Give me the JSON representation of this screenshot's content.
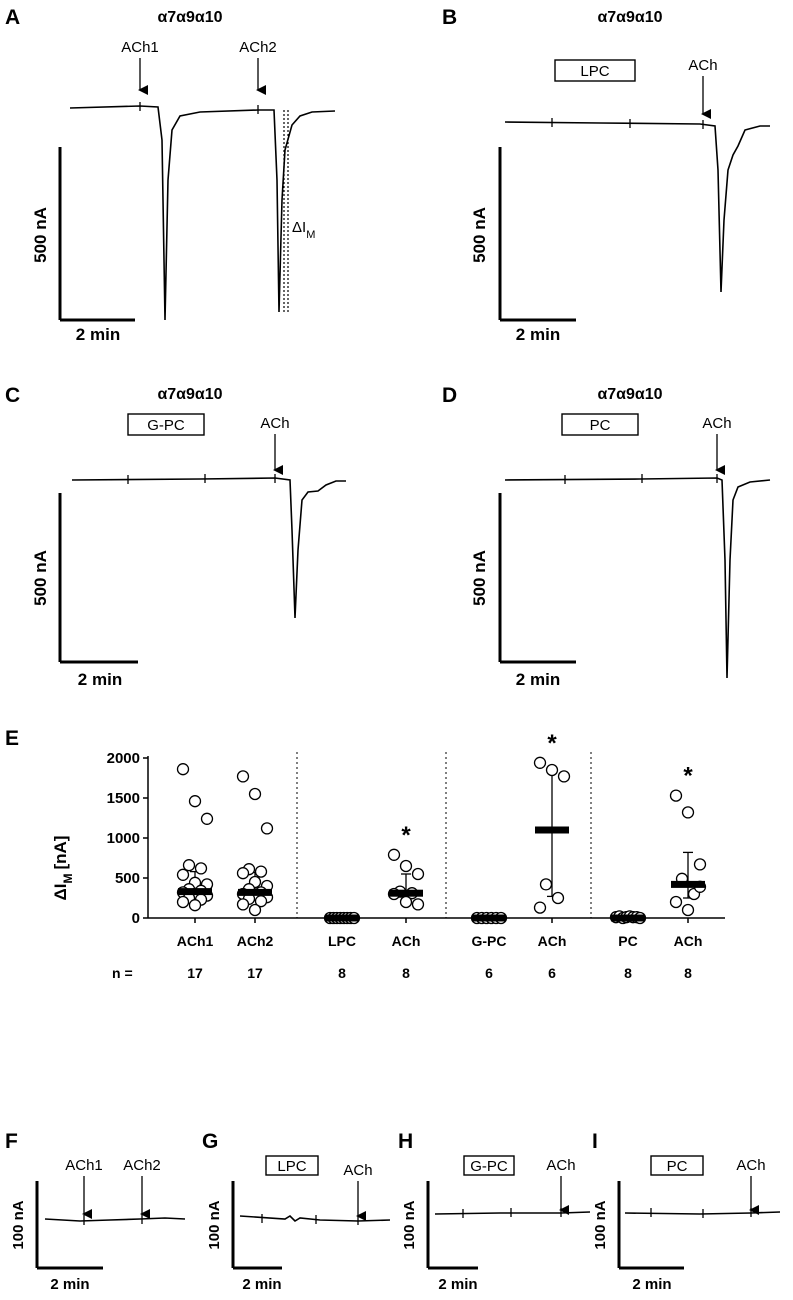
{
  "panels": {
    "A": {
      "label": "A",
      "title": "α7α9α10",
      "arrows": [
        "ACh1",
        "ACh2"
      ],
      "delta": "ΔI",
      "delta_sub": "M"
    },
    "B": {
      "label": "B",
      "title": "α7α9α10",
      "box": "LPC",
      "arrows": [
        "ACh"
      ]
    },
    "C": {
      "label": "C",
      "title": "α7α9α10",
      "box": "G-PC",
      "arrows": [
        "ACh"
      ]
    },
    "D": {
      "label": "D",
      "title": "α7α9α10",
      "box": "PC",
      "arrows": [
        "ACh"
      ]
    },
    "E": {
      "label": "E"
    },
    "F": {
      "label": "F",
      "arrows": [
        "ACh1",
        "ACh2"
      ]
    },
    "G": {
      "label": "G",
      "box": "LPC",
      "arrows": [
        "ACh"
      ]
    },
    "H": {
      "label": "H",
      "box": "G-PC",
      "arrows": [
        "ACh"
      ]
    },
    "I": {
      "label": "I",
      "box": "PC",
      "arrows": [
        "ACh"
      ]
    }
  },
  "scale_bars": {
    "current_large": "500 nA",
    "current_small": "100 nA",
    "time": "2 min"
  },
  "chart_data": {
    "type": "scatter",
    "ylabel": "ΔI",
    "ylabel_sub": "M",
    "ylabel_unit": "[nA]",
    "ylim": [
      0,
      2000
    ],
    "yticks": [
      "0",
      "500",
      "1000",
      "1500",
      "2000"
    ],
    "n_label": "n =",
    "categories": [
      "ACh1",
      "ACh2",
      "LPC",
      "ACh",
      "G-PC",
      "ACh",
      "PC",
      "ACh"
    ],
    "n": [
      "17",
      "17",
      "8",
      "8",
      "6",
      "6",
      "8",
      "8"
    ],
    "significance": [
      "",
      "",
      "",
      "*",
      "",
      "*",
      "",
      "*"
    ],
    "median": [
      330,
      320,
      0,
      310,
      0,
      1100,
      0,
      420
    ],
    "error_low": [
      230,
      230,
      0,
      240,
      0,
      270,
      0,
      250
    ],
    "error_high": [
      580,
      570,
      0,
      550,
      0,
      1820,
      0,
      820
    ],
    "points": [
      [
        1860,
        1460,
        1240,
        660,
        620,
        540,
        440,
        420,
        360,
        340,
        320,
        300,
        280,
        250,
        230,
        200,
        160
      ],
      [
        1770,
        1550,
        1120,
        610,
        580,
        560,
        450,
        400,
        360,
        320,
        300,
        290,
        260,
        240,
        210,
        170,
        100
      ],
      [
        0,
        0,
        0,
        0,
        0,
        0,
        0,
        0
      ],
      [
        790,
        650,
        550,
        330,
        310,
        300,
        200,
        170
      ],
      [
        0,
        0,
        0,
        0,
        0,
        0
      ],
      [
        1940,
        1850,
        1770,
        420,
        250,
        130
      ],
      [
        10,
        20,
        0,
        10,
        20,
        10,
        10,
        0
      ],
      [
        1530,
        1320,
        670,
        490,
        300,
        200,
        100,
        390
      ]
    ]
  }
}
